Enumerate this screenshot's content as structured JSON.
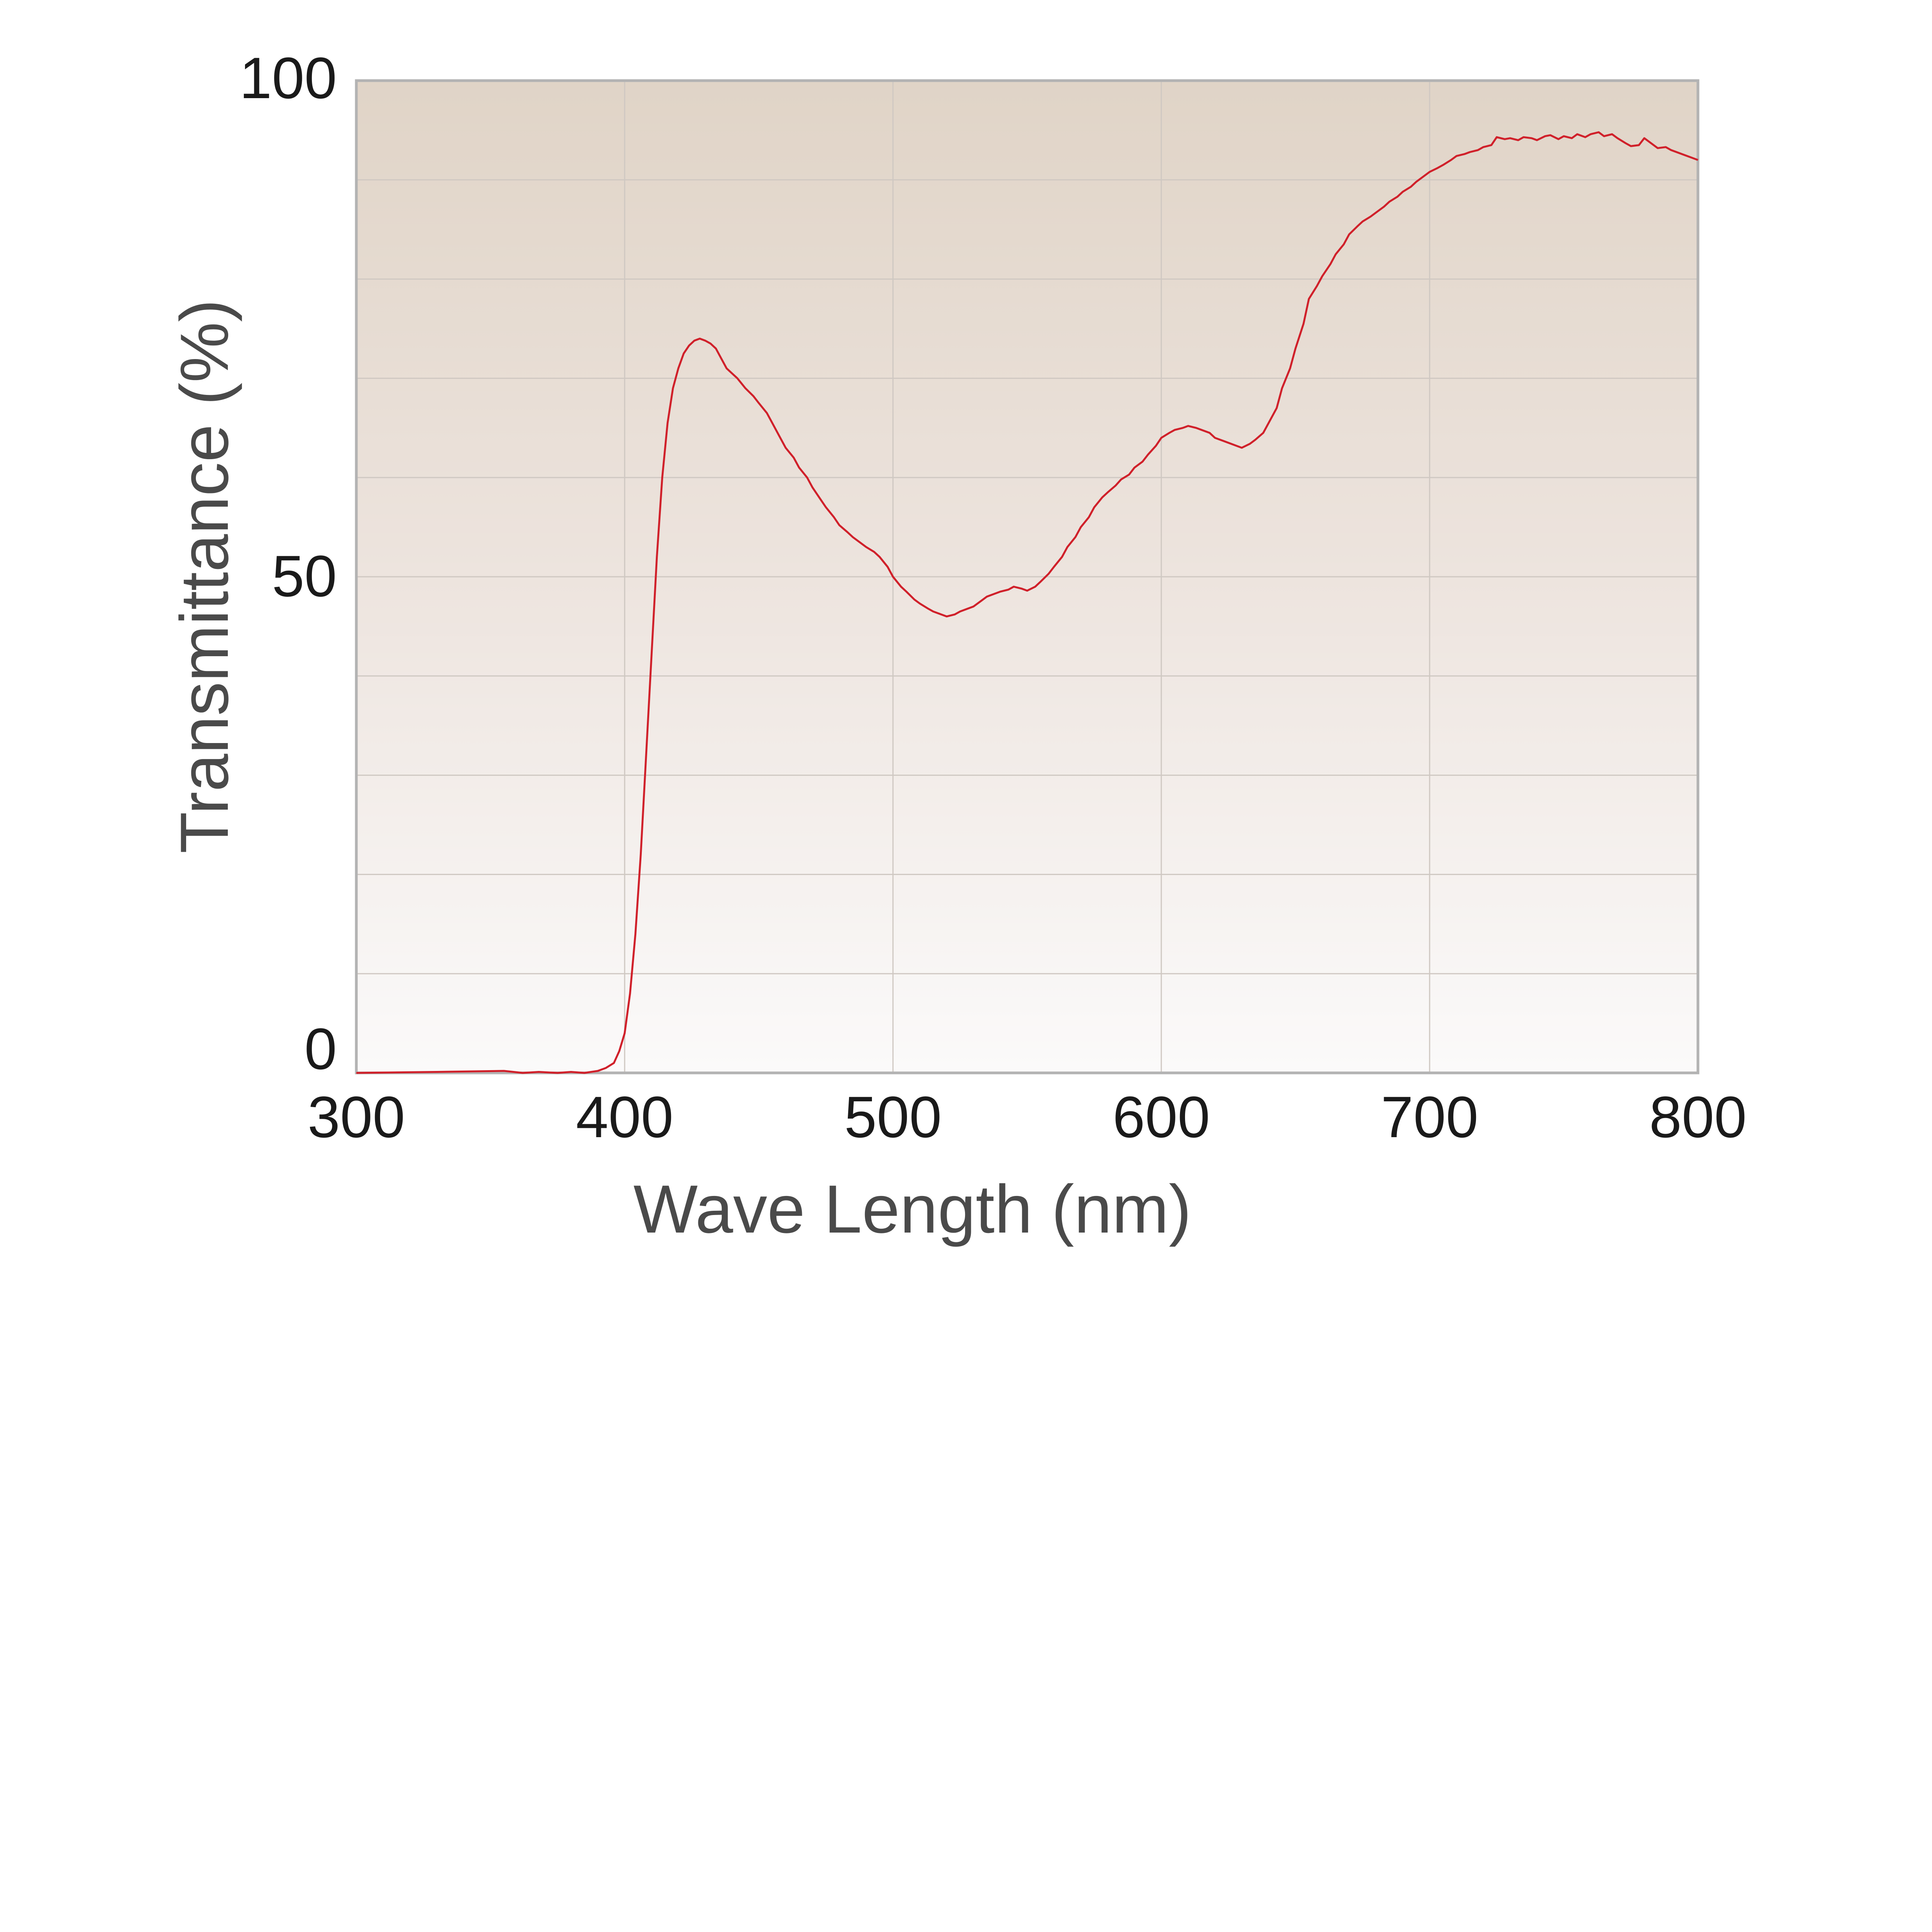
{
  "chart_data": {
    "type": "line",
    "xlabel": "Wave Length (nm)",
    "ylabel": "Transmittance (%)",
    "xlim": [
      300,
      800
    ],
    "ylim": [
      0,
      100
    ],
    "x_ticks": [
      "300",
      "400",
      "500",
      "600",
      "700",
      "800"
    ],
    "y_ticks": [
      "0",
      "50",
      "100"
    ],
    "grid": true,
    "legend": "none",
    "colors": {
      "line": "#d0202a",
      "plot_bg_top": "#e0d4c7",
      "plot_bg_bottom": "#fbfafa",
      "grid": "#cfc8c2",
      "frame": "#b3b3b3"
    },
    "series": [
      {
        "x": [
          300,
          330,
          355,
          362,
          368,
          375,
          380,
          385,
          390,
          393,
          396,
          398,
          400,
          402,
          404,
          406,
          408,
          410,
          412,
          414,
          416,
          418,
          420,
          422,
          424,
          426,
          428,
          430,
          432,
          434,
          436,
          438,
          440,
          442,
          445,
          448,
          450,
          453,
          455,
          458,
          460,
          463,
          465,
          468,
          470,
          473,
          475,
          478,
          480,
          483,
          485,
          488,
          490,
          493,
          495,
          498,
          500,
          503,
          505,
          508,
          510,
          513,
          515,
          518,
          520,
          523,
          525,
          528,
          530,
          533,
          535,
          538,
          540,
          543,
          545,
          548,
          550,
          553,
          555,
          558,
          560,
          563,
          565,
          568,
          570,
          573,
          575,
          578,
          580,
          583,
          585,
          588,
          590,
          593,
          595,
          598,
          600,
          603,
          605,
          608,
          610,
          613,
          615,
          618,
          620,
          623,
          625,
          628,
          630,
          633,
          635,
          638,
          640,
          643,
          645,
          648,
          650,
          653,
          655,
          658,
          660,
          663,
          665,
          668,
          670,
          673,
          675,
          678,
          680,
          683,
          685,
          688,
          690,
          693,
          695,
          698,
          700,
          703,
          705,
          708,
          710,
          713,
          715,
          718,
          720,
          723,
          725,
          728,
          730,
          733,
          735,
          738,
          740,
          743,
          745,
          748,
          750,
          753,
          755,
          758,
          760,
          763,
          765,
          768,
          770,
          773,
          775,
          778,
          780,
          783,
          785,
          788,
          790,
          793,
          795,
          798,
          800
        ],
        "y": [
          0.0,
          0.1,
          0.2,
          0.0,
          0.1,
          0.0,
          0.1,
          0.0,
          0.2,
          0.5,
          1.0,
          2.2,
          4.0,
          8.0,
          14.0,
          22.0,
          32.0,
          42.0,
          52.0,
          60.0,
          65.5,
          69.0,
          71.0,
          72.5,
          73.3,
          73.8,
          74.0,
          73.8,
          73.5,
          73.0,
          72.0,
          71.0,
          70.5,
          70.0,
          69.0,
          68.2,
          67.5,
          66.5,
          65.5,
          64.0,
          63.0,
          62.0,
          61.0,
          60.0,
          59.0,
          57.8,
          57.0,
          56.0,
          55.2,
          54.5,
          54.0,
          53.4,
          53.0,
          52.5,
          52.0,
          51.0,
          50.0,
          49.0,
          48.5,
          47.7,
          47.3,
          46.8,
          46.5,
          46.2,
          46.0,
          46.2,
          46.5,
          46.8,
          47.0,
          47.6,
          48.0,
          48.3,
          48.5,
          48.7,
          49.0,
          48.8,
          48.6,
          49.0,
          49.5,
          50.3,
          51.0,
          52.0,
          53.0,
          54.0,
          55.0,
          56.0,
          57.0,
          58.0,
          58.5,
          59.2,
          59.8,
          60.3,
          61.0,
          61.6,
          62.3,
          63.2,
          64.0,
          64.5,
          64.8,
          65.0,
          65.2,
          65.0,
          64.8,
          64.5,
          64.0,
          63.7,
          63.5,
          63.2,
          63.0,
          63.4,
          63.8,
          64.5,
          65.5,
          67.0,
          69.0,
          71.0,
          73.0,
          75.5,
          78.0,
          79.3,
          80.3,
          81.5,
          82.5,
          83.5,
          84.5,
          85.3,
          85.8,
          86.3,
          86.7,
          87.3,
          87.8,
          88.3,
          88.8,
          89.3,
          89.8,
          90.4,
          90.8,
          91.2,
          91.5,
          92.0,
          92.4,
          92.6,
          92.8,
          93.0,
          93.3,
          93.5,
          94.3,
          94.1,
          94.2,
          94.0,
          94.3,
          94.2,
          94.0,
          94.4,
          94.5,
          94.1,
          94.4,
          94.2,
          94.6,
          94.3,
          94.6,
          94.8,
          94.4,
          94.6,
          94.2,
          93.7,
          93.4,
          93.5,
          94.2,
          93.6,
          93.2,
          93.3,
          93.0,
          92.7,
          92.5,
          92.2,
          92.0
        ]
      }
    ]
  }
}
